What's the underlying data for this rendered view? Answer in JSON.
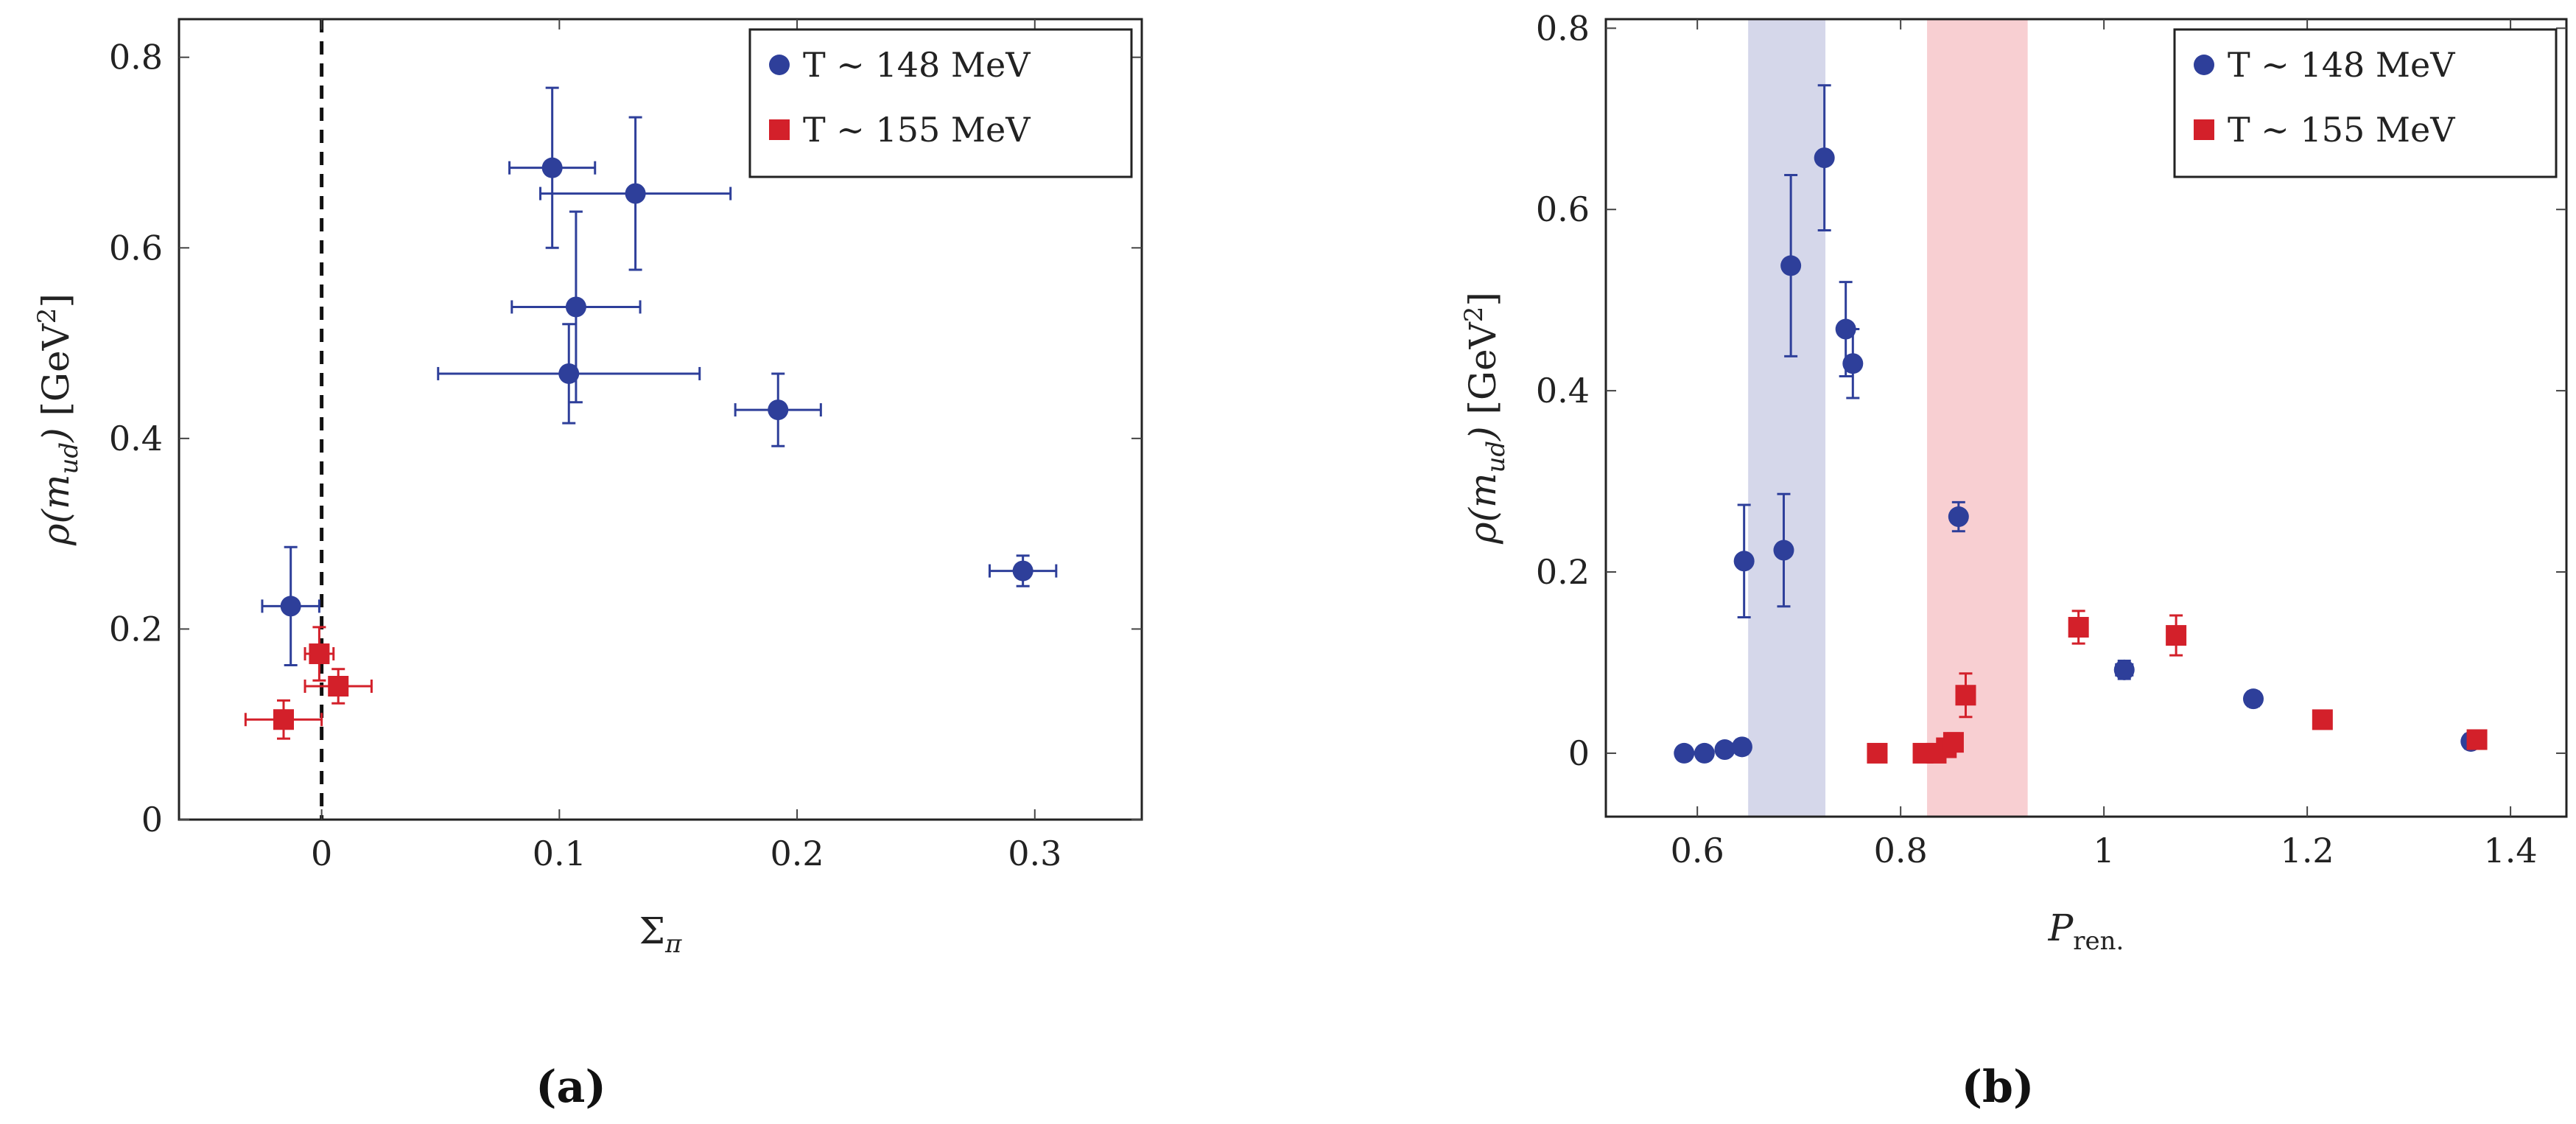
{
  "colors": {
    "blue": "#2e3f9a",
    "red": "#d3202a",
    "band_blue": "#d5d7ea",
    "band_red": "#f8cfd2",
    "axis": "#222222",
    "grid_tick": "#444444"
  },
  "captions": {
    "a": "(a)",
    "b": "(b)"
  },
  "chart_data": [
    {
      "type": "scatter",
      "panel": "a",
      "xlabel": "Σ_π",
      "xlabel_main": "Σ",
      "xlabel_sub": "π",
      "ylabel": "ρ(m_ud) [GeV²]",
      "ylabel_parts": {
        "rho": "ρ(",
        "m": "m",
        "sub": "ud",
        "close": ")",
        "unit_open": " [GeV",
        "sup": "2",
        "unit_close": "]"
      },
      "xlim": [
        -0.06,
        0.345
      ],
      "ylim": [
        0,
        0.84
      ],
      "xticks": [
        0,
        0.1,
        0.2,
        0.3
      ],
      "xtick_labels": [
        "0",
        "0.1",
        "0.2",
        "0.3"
      ],
      "yticks": [
        0,
        0.2,
        0.4,
        0.6,
        0.8
      ],
      "ytick_labels": [
        "0",
        "0.2",
        "0.4",
        "0.6",
        "0.8"
      ],
      "vline": {
        "x": 0,
        "style": "dashed"
      },
      "legend": {
        "position": "top-right",
        "entries": [
          "T ∼ 148 MeV",
          "T ∼ 155 MeV"
        ]
      },
      "series": [
        {
          "name": "T ∼ 148 MeV",
          "marker": "circle",
          "color": "#2e3f9a",
          "points": [
            {
              "x": -0.013,
              "y": 0.224,
              "xerr": 0.012,
              "yerr": 0.062
            },
            {
              "x": 0.097,
              "y": 0.684,
              "xerr": 0.018,
              "yerr": 0.084
            },
            {
              "x": 0.132,
              "y": 0.657,
              "xerr": 0.04,
              "yerr": 0.08
            },
            {
              "x": 0.107,
              "y": 0.538,
              "xerr": 0.027,
              "yerr": 0.1
            },
            {
              "x": 0.104,
              "y": 0.468,
              "xerr": 0.055,
              "yerr": 0.052
            },
            {
              "x": 0.192,
              "y": 0.43,
              "xerr": 0.018,
              "yerr": 0.038
            },
            {
              "x": 0.295,
              "y": 0.261,
              "xerr": 0.014,
              "yerr": 0.016
            }
          ]
        },
        {
          "name": "T ∼ 155 MeV",
          "marker": "square",
          "color": "#d3202a",
          "points": [
            {
              "x": -0.001,
              "y": 0.174,
              "xerr": 0.006,
              "yerr": 0.028
            },
            {
              "x": 0.007,
              "y": 0.14,
              "xerr": 0.014,
              "yerr": 0.018
            },
            {
              "x": -0.016,
              "y": 0.105,
              "xerr": 0.016,
              "yerr": 0.02
            }
          ]
        }
      ]
    },
    {
      "type": "scatter",
      "panel": "b",
      "xlabel": "P_ren.",
      "xlabel_main": "P",
      "xlabel_sub": "ren.",
      "ylabel": "ρ(m_ud) [GeV²]",
      "ylabel_parts": {
        "rho": "ρ(",
        "m": "m",
        "sub": "ud",
        "close": ")",
        "unit_open": " [GeV",
        "sup": "2",
        "unit_close": "]"
      },
      "xlim": [
        0.51,
        1.455
      ],
      "ylim": [
        -0.07,
        0.81
      ],
      "xticks": [
        0.6,
        0.8,
        1.0,
        1.2,
        1.4
      ],
      "xtick_labels": [
        "0.6",
        "0.8",
        "1",
        "1.2",
        "1.4"
      ],
      "yticks": [
        0,
        0.2,
        0.4,
        0.6,
        0.8
      ],
      "ytick_labels": [
        "0",
        "0.2",
        "0.4",
        "0.6",
        "0.8"
      ],
      "bands": [
        {
          "x0": 0.65,
          "x1": 0.726,
          "color": "#d5d7ea"
        },
        {
          "x0": 0.826,
          "x1": 0.925,
          "color": "#f8cfd2"
        }
      ],
      "legend": {
        "position": "top-right",
        "entries": [
          "T ∼ 148 MeV",
          "T ∼ 155 MeV"
        ]
      },
      "series": [
        {
          "name": "T ∼ 148 MeV",
          "marker": "circle",
          "color": "#2e3f9a",
          "points": [
            {
              "x": 0.587,
              "y": 0.0,
              "xerr": 0,
              "yerr": 0
            },
            {
              "x": 0.607,
              "y": 0.0,
              "xerr": 0,
              "yerr": 0
            },
            {
              "x": 0.627,
              "y": 0.004,
              "xerr": 0,
              "yerr": 0
            },
            {
              "x": 0.644,
              "y": 0.007,
              "xerr": 0.006,
              "yerr": 0.008
            },
            {
              "x": 0.646,
              "y": 0.212,
              "xerr": 0.004,
              "yerr": 0.062
            },
            {
              "x": 0.685,
              "y": 0.224,
              "xerr": 0.006,
              "yerr": 0.062
            },
            {
              "x": 0.692,
              "y": 0.538,
              "xerr": 0.006,
              "yerr": 0.1
            },
            {
              "x": 0.725,
              "y": 0.657,
              "xerr": 0.006,
              "yerr": 0.08
            },
            {
              "x": 0.746,
              "y": 0.468,
              "xerr": 0.005,
              "yerr": 0.052
            },
            {
              "x": 0.753,
              "y": 0.43,
              "xerr": 0.005,
              "yerr": 0.038
            },
            {
              "x": 0.857,
              "y": 0.261,
              "xerr": 0.005,
              "yerr": 0.016
            },
            {
              "x": 1.02,
              "y": 0.092,
              "xerr": 0.008,
              "yerr": 0.01
            },
            {
              "x": 1.147,
              "y": 0.06,
              "xerr": 0.006,
              "yerr": 0.008
            },
            {
              "x": 1.361,
              "y": 0.013,
              "xerr": 0.006,
              "yerr": 0.008
            }
          ]
        },
        {
          "name": "T ∼ 155 MeV",
          "marker": "square",
          "color": "#d3202a",
          "points": [
            {
              "x": 0.777,
              "y": 0.0,
              "xerr": 0,
              "yerr": 0
            },
            {
              "x": 0.822,
              "y": 0.0,
              "xerr": 0,
              "yerr": 0
            },
            {
              "x": 0.835,
              "y": 0.0,
              "xerr": 0,
              "yerr": 0
            },
            {
              "x": 0.845,
              "y": 0.006,
              "xerr": 0,
              "yerr": 0.008
            },
            {
              "x": 0.852,
              "y": 0.012,
              "xerr": 0.006,
              "yerr": 0.01
            },
            {
              "x": 0.864,
              "y": 0.064,
              "xerr": 0.006,
              "yerr": 0.024
            },
            {
              "x": 0.975,
              "y": 0.139,
              "xerr": 0.007,
              "yerr": 0.018
            },
            {
              "x": 1.071,
              "y": 0.13,
              "xerr": 0.007,
              "yerr": 0.022
            },
            {
              "x": 1.215,
              "y": 0.037,
              "xerr": 0.007,
              "yerr": 0.008
            },
            {
              "x": 1.367,
              "y": 0.015,
              "xerr": 0.006,
              "yerr": 0.006
            }
          ]
        }
      ]
    }
  ]
}
